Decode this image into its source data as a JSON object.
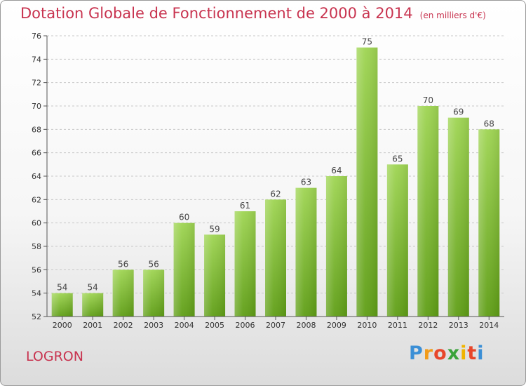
{
  "title": "Dotation Globale de Fonctionnement de 2000 à 2014",
  "subtitle": "(en milliers d'€)",
  "commune": "LOGRON",
  "logo": {
    "letters": [
      "P",
      "r",
      "o",
      "x",
      "i",
      "t",
      "i"
    ],
    "colors": [
      "#3b8fd6",
      "#f19b1a",
      "#e8462a",
      "#3aa33a",
      "#f0b400",
      "#e8462a",
      "#3b8fd6"
    ]
  },
  "chart_data": {
    "type": "bar",
    "title": "Dotation Globale de Fonctionnement de 2000 à 2014",
    "subtitle": "(en milliers d'€)",
    "categories": [
      "2000",
      "2001",
      "2002",
      "2003",
      "2004",
      "2005",
      "2006",
      "2007",
      "2008",
      "2009",
      "2010",
      "2011",
      "2012",
      "2013",
      "2014"
    ],
    "values": [
      54,
      54,
      56,
      56,
      60,
      59,
      61,
      62,
      63,
      64,
      75,
      65,
      70,
      69,
      68
    ],
    "ylim": [
      52,
      76
    ],
    "yticks": [
      52,
      54,
      56,
      58,
      60,
      62,
      64,
      66,
      68,
      70,
      72,
      74,
      76
    ],
    "grid": "horizontal-dashed",
    "bar_color_top": "#9fd553",
    "bar_color_bottom": "#5f9e16"
  }
}
